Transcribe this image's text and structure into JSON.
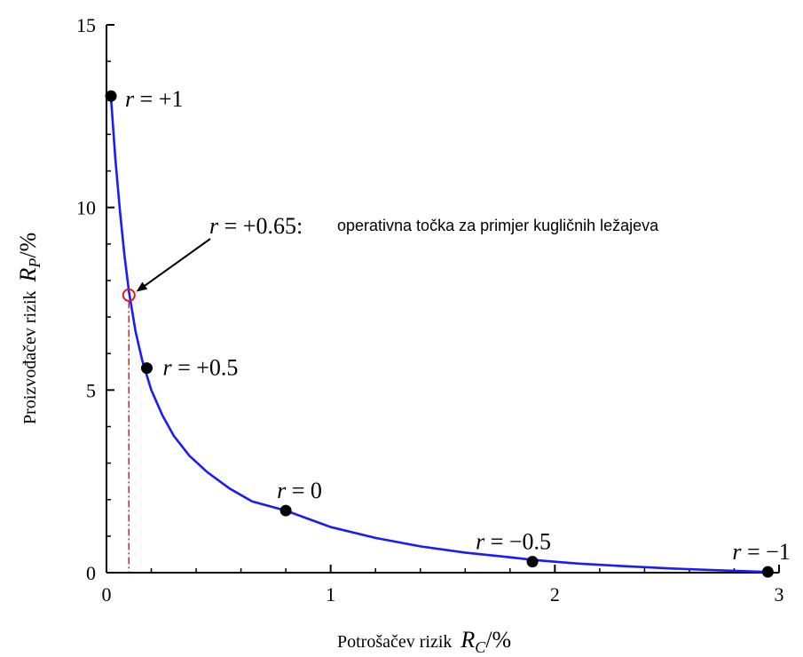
{
  "chart_data": {
    "type": "line",
    "title": "",
    "xlabel": "Potrošačev rizik",
    "xlabel_symbol": "R",
    "xlabel_subscript": "C",
    "xlabel_unit": "/%",
    "ylabel": "Proizvođačev rizik",
    "ylabel_symbol": "R",
    "ylabel_subscript": "P",
    "ylabel_unit": "/%",
    "xlim": [
      0,
      3
    ],
    "ylim": [
      0,
      15
    ],
    "xticks": [
      0,
      1,
      2,
      3
    ],
    "yticks": [
      0,
      5,
      10,
      15
    ],
    "xtick_labels": [
      "0",
      "1",
      "2",
      "3"
    ],
    "ytick_labels": [
      "0",
      "5",
      "10",
      "15"
    ],
    "grid": false,
    "curve": {
      "color": "#1a1aff",
      "x": [
        0.02,
        0.04,
        0.06,
        0.08,
        0.1,
        0.13,
        0.16,
        0.2,
        0.25,
        0.3,
        0.37,
        0.45,
        0.55,
        0.65,
        0.8,
        1.0,
        1.2,
        1.4,
        1.6,
        1.8,
        1.9,
        2.1,
        2.3,
        2.5,
        2.7,
        2.9,
        2.95
      ],
      "y": [
        13.0,
        11.3,
        9.9,
        8.7,
        7.7,
        6.6,
        5.8,
        5.0,
        4.3,
        3.75,
        3.2,
        2.75,
        2.3,
        1.95,
        1.7,
        1.25,
        0.95,
        0.72,
        0.55,
        0.42,
        0.35,
        0.25,
        0.18,
        0.12,
        0.07,
        0.03,
        0.02
      ]
    },
    "points": [
      {
        "x": 0.02,
        "y": 13.05,
        "label_pre": "r",
        "label_post": " = +1"
      },
      {
        "x": 0.18,
        "y": 5.6,
        "label_pre": "r",
        "label_post": " = +0.5"
      },
      {
        "x": 0.8,
        "y": 1.7,
        "label_pre": "r",
        "label_post": " = 0"
      },
      {
        "x": 1.9,
        "y": 0.3,
        "label_pre": "r",
        "label_post": " = −0.5"
      },
      {
        "x": 2.95,
        "y": 0.02,
        "label_pre": "r",
        "label_post": " = −1"
      }
    ],
    "operating_point": {
      "x": 0.1,
      "y": 7.6,
      "marker_color": "#e8191e",
      "label_pre": "r",
      "label_post": " = +0.65:",
      "note": "operativna točka za primjer kugličnih ležajeva"
    }
  }
}
